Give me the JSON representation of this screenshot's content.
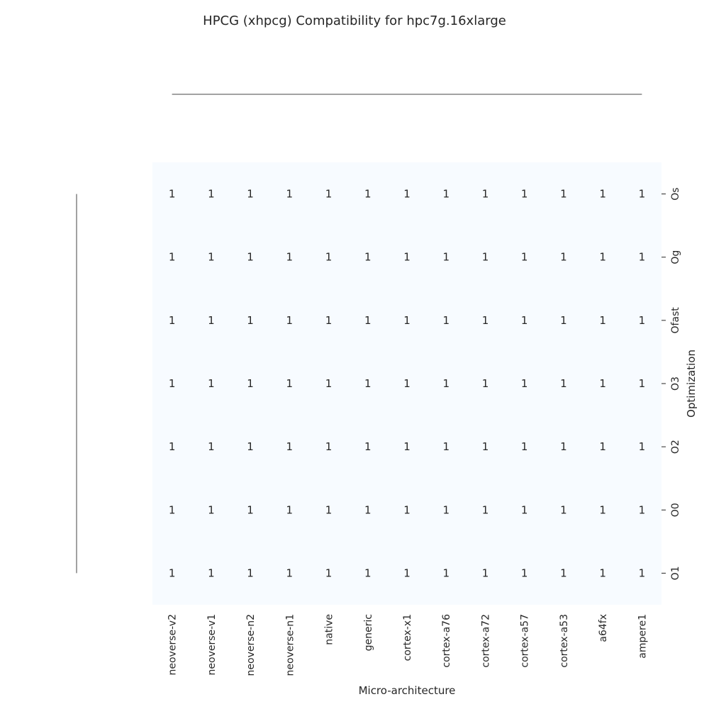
{
  "chart_data": {
    "type": "heatmap",
    "title": "HPCG (xhpcg) Compatibility for hpc7g.16xlarge",
    "xlabel": "Micro-architecture",
    "ylabel": "Optimization",
    "x_categories": [
      "neoverse-v2",
      "neoverse-v1",
      "neoverse-n2",
      "neoverse-n1",
      "native",
      "generic",
      "cortex-x1",
      "cortex-a76",
      "cortex-a72",
      "cortex-a57",
      "cortex-a53",
      "a64fx",
      "ampere1"
    ],
    "y_categories": [
      "Os",
      "Og",
      "Ofast",
      "O3",
      "O2",
      "O0",
      "O1"
    ],
    "values": [
      [
        1,
        1,
        1,
        1,
        1,
        1,
        1,
        1,
        1,
        1,
        1,
        1,
        1
      ],
      [
        1,
        1,
        1,
        1,
        1,
        1,
        1,
        1,
        1,
        1,
        1,
        1,
        1
      ],
      [
        1,
        1,
        1,
        1,
        1,
        1,
        1,
        1,
        1,
        1,
        1,
        1,
        1
      ],
      [
        1,
        1,
        1,
        1,
        1,
        1,
        1,
        1,
        1,
        1,
        1,
        1,
        1
      ],
      [
        1,
        1,
        1,
        1,
        1,
        1,
        1,
        1,
        1,
        1,
        1,
        1,
        1
      ],
      [
        1,
        1,
        1,
        1,
        1,
        1,
        1,
        1,
        1,
        1,
        1,
        1,
        1
      ],
      [
        1,
        1,
        1,
        1,
        1,
        1,
        1,
        1,
        1,
        1,
        1,
        1,
        1
      ]
    ],
    "cell_color": "#f7fbff",
    "colorbar": false,
    "dendrograms": true,
    "grid": false
  }
}
